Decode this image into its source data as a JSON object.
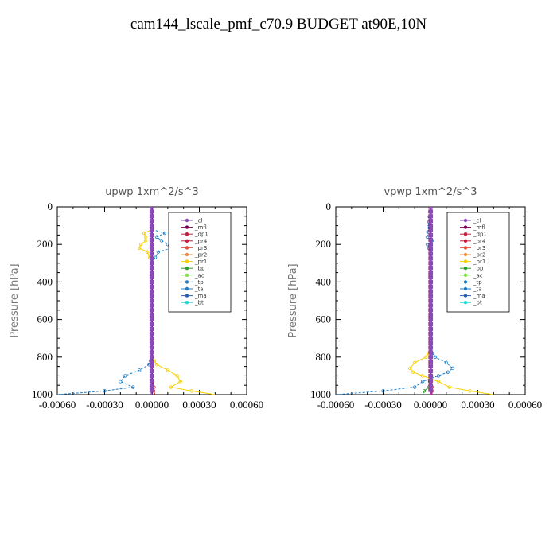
{
  "title": "cam144_lscale_pmf_c70.9  BUDGET at90E,10N",
  "chart_data": [
    {
      "type": "line",
      "title": "upwp   1xm^2/s^3",
      "ylabel": "Pressure [hPa]",
      "xlabel": "",
      "xlim": [
        -0.0006,
        0.0006
      ],
      "ylim": [
        1000,
        0
      ],
      "xticks": [
        "-0.00060",
        "-0.00030",
        "0.00000",
        "0.00030",
        "0.00060"
      ],
      "xtick_values": [
        -0.0006,
        -0.0003,
        0,
        0.0003,
        0.0006
      ],
      "yticks": [
        "0",
        "200",
        "400",
        "600",
        "800",
        "1000"
      ],
      "ytick_values": [
        0,
        200,
        400,
        600,
        800,
        1000
      ],
      "legend_position": "top-right",
      "legend": [
        "_cl",
        "_mfl",
        "_dp1",
        "_pr4",
        "_pr3",
        "_pr2",
        "_pr1",
        "_bp",
        "_ac",
        "_tp",
        "_ta",
        "_ma",
        "_bt"
      ],
      "series": [
        {
          "name": "_pr1",
          "color": "#f5d000",
          "p": [
            120,
            140,
            160,
            180,
            200,
            220,
            240,
            300,
            500,
            800,
            840,
            870,
            900,
            930,
            960,
            980,
            1000
          ],
          "x": [
            0,
            -5e-05,
            -4e-05,
            -4e-05,
            -7e-05,
            -8e-05,
            -3e-05,
            0,
            0,
            0,
            3e-05,
            0.0001,
            0.00016,
            0.00018,
            0.00012,
            0.00025,
            0.0004
          ]
        },
        {
          "name": "_ta",
          "color": "#1f7fc8",
          "p": [
            120,
            140,
            160,
            180,
            200,
            220,
            240,
            300,
            500,
            800,
            840,
            870,
            900,
            930,
            960,
            980,
            1000
          ],
          "x": [
            0,
            8e-05,
            3e-05,
            6e-05,
            0.0001,
            0.00012,
            4e-05,
            0,
            0,
            0,
            -2e-05,
            -8e-05,
            -0.00017,
            -0.0002,
            -0.00012,
            -0.0003,
            -0.0006
          ]
        },
        {
          "name": "_dp1",
          "color": "#c81e3c",
          "p": [
            0,
            900,
            930,
            960,
            980,
            1000
          ],
          "x": [
            0,
            0,
            5e-06,
            1.2e-05,
            1e-05,
            2e-05
          ]
        },
        {
          "name": "_mfl",
          "color": "#7a005a",
          "p": [
            0,
            1000
          ],
          "x": [
            0,
            0
          ]
        },
        {
          "name": "_cl",
          "color": "#8a4ab8",
          "p": [
            0,
            1000
          ],
          "x": [
            -3e-06,
            -3e-06
          ]
        }
      ]
    },
    {
      "type": "line",
      "title": "vpwp   1xm^2/s^3",
      "ylabel": "Pressure [hPa]",
      "xlabel": "",
      "xlim": [
        -0.0006,
        0.0006
      ],
      "ylim": [
        1000,
        0
      ],
      "xticks": [
        "-0.00060",
        "-0.00030",
        "0.00000",
        "0.00030",
        "0.00060"
      ],
      "xtick_values": [
        -0.0006,
        -0.0003,
        0,
        0.0003,
        0.0006
      ],
      "yticks": [
        "0",
        "200",
        "400",
        "600",
        "800",
        "1000"
      ],
      "ytick_values": [
        0,
        200,
        400,
        600,
        800,
        1000
      ],
      "legend_position": "top-right",
      "legend": [
        "_cl",
        "_mfl",
        "_dp1",
        "_pr4",
        "_pr3",
        "_pr2",
        "_pr1",
        "_bp",
        "_ac",
        "_tp",
        "_ta",
        "_ma",
        "_bt"
      ],
      "series": [
        {
          "name": "_pr1",
          "color": "#f5d000",
          "p": [
            0,
            760,
            800,
            830,
            860,
            880,
            900,
            930,
            960,
            980,
            1000
          ],
          "x": [
            0,
            0,
            -3e-05,
            -0.0001,
            -0.00013,
            -0.00011,
            -5e-05,
            5e-05,
            0.00012,
            0.00025,
            0.0004
          ]
        },
        {
          "name": "_ta",
          "color": "#1f7fc8",
          "p": [
            0,
            160,
            180,
            200,
            240,
            280,
            760,
            800,
            830,
            860,
            880,
            900,
            930,
            960,
            980,
            1000
          ],
          "x": [
            0,
            -2e-05,
            1e-05,
            -2e-05,
            0,
            0,
            0,
            3e-05,
            0.0001,
            0.00014,
            0.00011,
            5e-05,
            -5e-05,
            -0.0001,
            -0.0003,
            -0.0006
          ]
        },
        {
          "name": "_bp",
          "color": "#2ba02b",
          "p": [
            900,
            960,
            980,
            1000
          ],
          "x": [
            0,
            -1e-05,
            -4e-05,
            -5e-05
          ]
        },
        {
          "name": "_dp1",
          "color": "#c81e3c",
          "p": [
            0,
            900,
            960,
            1000
          ],
          "x": [
            0,
            0,
            1e-05,
            1e-05
          ]
        },
        {
          "name": "_mfl",
          "color": "#7a005a",
          "p": [
            0,
            1000
          ],
          "x": [
            0,
            0
          ]
        },
        {
          "name": "_cl",
          "color": "#8a4ab8",
          "p": [
            0,
            1000
          ],
          "x": [
            3e-06,
            3e-06
          ]
        }
      ]
    }
  ],
  "legend_colors": {
    "_cl": "#8a4ab8",
    "_mfl": "#7a005a",
    "_dp1": "#c81e3c",
    "_pr4": "#c81e3c",
    "_pr3": "#e8503c",
    "_pr2": "#f09040",
    "_pr1": "#f5d000",
    "_bp": "#2ba02b",
    "_ac": "#7fe040",
    "_tp": "#1f7fc8",
    "_ta": "#1f7fc8",
    "_ma": "#2a5fb0",
    "_bt": "#20d8d8"
  }
}
